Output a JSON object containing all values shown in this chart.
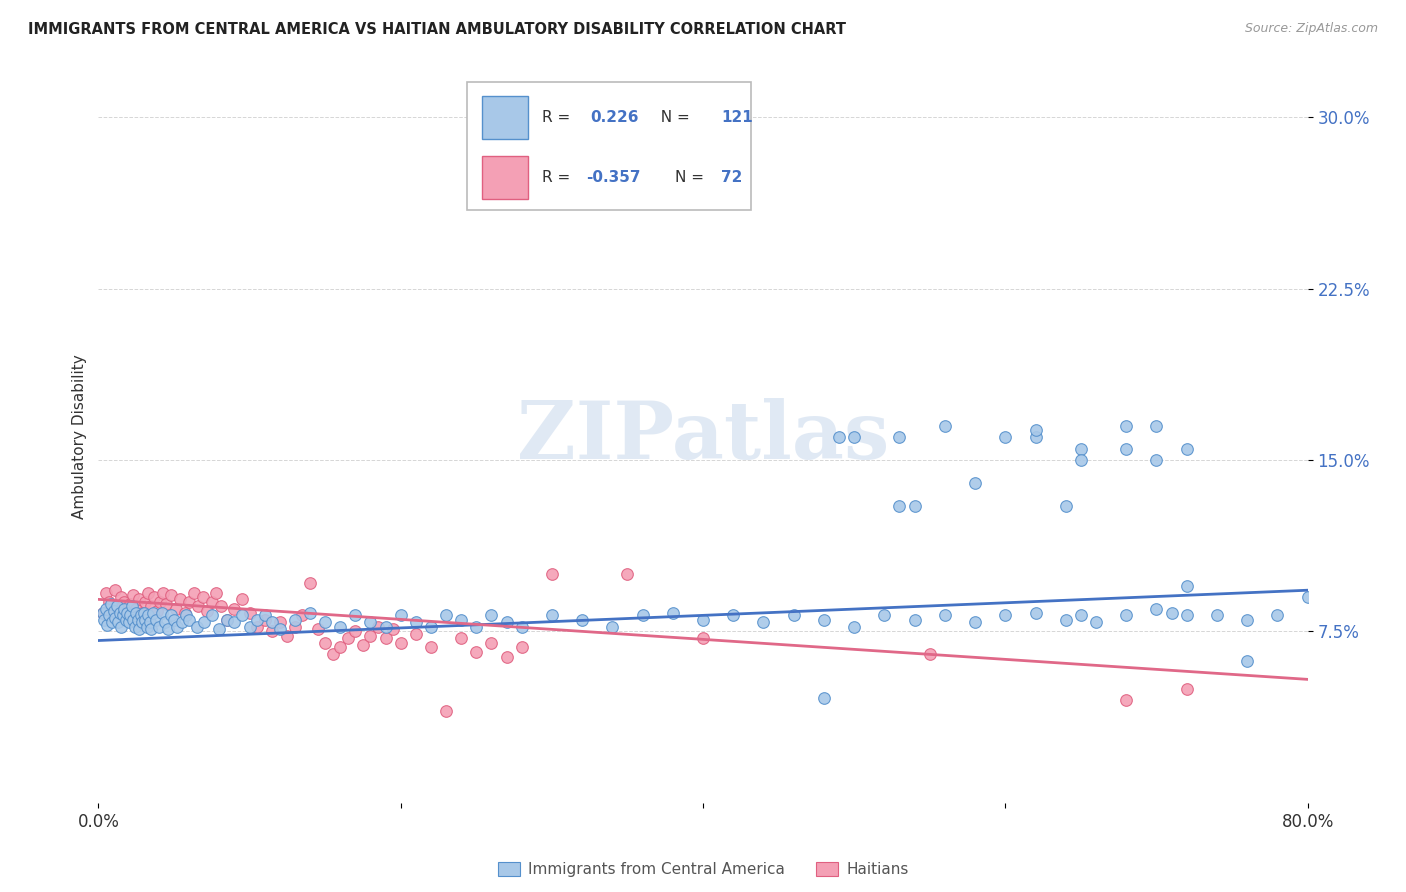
{
  "title": "IMMIGRANTS FROM CENTRAL AMERICA VS HAITIAN AMBULATORY DISABILITY CORRELATION CHART",
  "source": "Source: ZipAtlas.com",
  "ylabel": "Ambulatory Disability",
  "x_min": 0.0,
  "x_max": 0.8,
  "y_min": 0.0,
  "y_max": 0.32,
  "y_ticks": [
    0.075,
    0.15,
    0.225,
    0.3
  ],
  "y_tick_labels": [
    "7.5%",
    "15.0%",
    "22.5%",
    "30.0%"
  ],
  "x_ticks": [
    0.0,
    0.2,
    0.4,
    0.6,
    0.8
  ],
  "x_tick_labels": [
    "0.0%",
    "",
    "",
    "",
    "80.0%"
  ],
  "blue_color": "#A8C8E8",
  "pink_color": "#F4A0B5",
  "blue_edge_color": "#5590CC",
  "pink_edge_color": "#E06080",
  "blue_line_color": "#4472C4",
  "pink_line_color": "#E06888",
  "legend_bottom_blue": "Immigrants from Central America",
  "legend_bottom_pink": "Haitians",
  "watermark": "ZIPatlas",
  "blue_scatter_x": [
    0.003,
    0.004,
    0.005,
    0.006,
    0.007,
    0.008,
    0.009,
    0.01,
    0.011,
    0.012,
    0.013,
    0.014,
    0.015,
    0.016,
    0.017,
    0.018,
    0.019,
    0.02,
    0.021,
    0.022,
    0.023,
    0.024,
    0.025,
    0.026,
    0.027,
    0.028,
    0.029,
    0.03,
    0.031,
    0.032,
    0.033,
    0.034,
    0.035,
    0.036,
    0.038,
    0.04,
    0.042,
    0.044,
    0.046,
    0.048,
    0.05,
    0.052,
    0.055,
    0.058,
    0.06,
    0.065,
    0.07,
    0.075,
    0.08,
    0.085,
    0.09,
    0.095,
    0.1,
    0.105,
    0.11,
    0.115,
    0.12,
    0.13,
    0.14,
    0.15,
    0.16,
    0.17,
    0.18,
    0.19,
    0.2,
    0.21,
    0.22,
    0.23,
    0.24,
    0.25,
    0.26,
    0.27,
    0.28,
    0.3,
    0.32,
    0.34,
    0.36,
    0.38,
    0.4,
    0.42,
    0.44,
    0.46,
    0.48,
    0.5,
    0.52,
    0.54,
    0.56,
    0.58,
    0.6,
    0.62,
    0.64,
    0.65,
    0.66,
    0.68,
    0.7,
    0.71,
    0.72,
    0.74,
    0.76,
    0.78,
    0.8,
    0.49,
    0.53,
    0.56,
    0.6,
    0.62,
    0.65,
    0.68,
    0.7,
    0.65,
    0.7,
    0.72,
    0.68,
    0.72,
    0.76,
    0.58,
    0.53,
    0.48,
    0.5,
    0.54,
    0.62,
    0.64
  ],
  "blue_scatter_y": [
    0.083,
    0.08,
    0.085,
    0.078,
    0.082,
    0.087,
    0.079,
    0.084,
    0.081,
    0.086,
    0.079,
    0.083,
    0.077,
    0.082,
    0.085,
    0.08,
    0.083,
    0.079,
    0.082,
    0.086,
    0.08,
    0.077,
    0.083,
    0.08,
    0.076,
    0.082,
    0.079,
    0.083,
    0.08,
    0.077,
    0.082,
    0.079,
    0.076,
    0.083,
    0.08,
    0.077,
    0.083,
    0.079,
    0.076,
    0.082,
    0.08,
    0.077,
    0.079,
    0.082,
    0.08,
    0.077,
    0.079,
    0.082,
    0.076,
    0.08,
    0.079,
    0.082,
    0.077,
    0.08,
    0.082,
    0.079,
    0.076,
    0.08,
    0.083,
    0.079,
    0.077,
    0.082,
    0.079,
    0.077,
    0.082,
    0.079,
    0.077,
    0.082,
    0.08,
    0.077,
    0.082,
    0.079,
    0.077,
    0.082,
    0.08,
    0.077,
    0.082,
    0.083,
    0.08,
    0.082,
    0.079,
    0.082,
    0.08,
    0.077,
    0.082,
    0.08,
    0.082,
    0.079,
    0.082,
    0.083,
    0.08,
    0.082,
    0.079,
    0.082,
    0.085,
    0.083,
    0.082,
    0.082,
    0.08,
    0.082,
    0.09,
    0.16,
    0.13,
    0.165,
    0.16,
    0.16,
    0.155,
    0.165,
    0.165,
    0.15,
    0.15,
    0.155,
    0.155,
    0.095,
    0.062,
    0.14,
    0.16,
    0.046,
    0.16,
    0.13,
    0.163,
    0.13
  ],
  "pink_scatter_x": [
    0.003,
    0.005,
    0.007,
    0.009,
    0.011,
    0.013,
    0.015,
    0.017,
    0.019,
    0.021,
    0.023,
    0.025,
    0.027,
    0.029,
    0.031,
    0.033,
    0.035,
    0.037,
    0.039,
    0.041,
    0.043,
    0.045,
    0.048,
    0.051,
    0.054,
    0.057,
    0.06,
    0.063,
    0.066,
    0.069,
    0.072,
    0.075,
    0.078,
    0.081,
    0.085,
    0.09,
    0.095,
    0.1,
    0.105,
    0.11,
    0.115,
    0.12,
    0.125,
    0.13,
    0.135,
    0.14,
    0.145,
    0.15,
    0.155,
    0.16,
    0.165,
    0.17,
    0.175,
    0.18,
    0.185,
    0.19,
    0.195,
    0.2,
    0.21,
    0.22,
    0.23,
    0.24,
    0.25,
    0.26,
    0.27,
    0.28,
    0.3,
    0.35,
    0.4,
    0.55,
    0.68,
    0.72
  ],
  "pink_scatter_y": [
    0.083,
    0.092,
    0.088,
    0.085,
    0.093,
    0.086,
    0.09,
    0.088,
    0.082,
    0.087,
    0.091,
    0.085,
    0.089,
    0.083,
    0.088,
    0.092,
    0.086,
    0.09,
    0.084,
    0.088,
    0.092,
    0.087,
    0.091,
    0.085,
    0.089,
    0.083,
    0.088,
    0.092,
    0.086,
    0.09,
    0.084,
    0.088,
    0.092,
    0.086,
    0.08,
    0.085,
    0.089,
    0.083,
    0.077,
    0.08,
    0.075,
    0.079,
    0.073,
    0.077,
    0.082,
    0.096,
    0.076,
    0.07,
    0.065,
    0.068,
    0.072,
    0.075,
    0.069,
    0.073,
    0.077,
    0.072,
    0.076,
    0.07,
    0.074,
    0.068,
    0.04,
    0.072,
    0.066,
    0.07,
    0.064,
    0.068,
    0.1,
    0.1,
    0.072,
    0.065,
    0.045,
    0.05
  ],
  "blue_trend_x": [
    0.0,
    0.8
  ],
  "blue_trend_y": [
    0.071,
    0.093
  ],
  "pink_trend_x": [
    0.0,
    0.8
  ],
  "pink_trend_y": [
    0.089,
    0.054
  ]
}
